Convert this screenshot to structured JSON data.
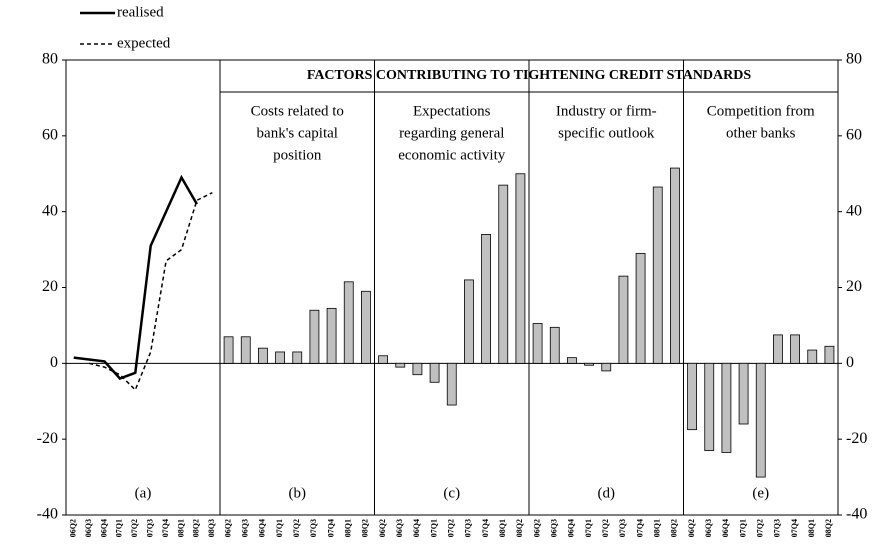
{
  "chart_data": {
    "type": "panels",
    "super_title": "FACTORS CONTRIBUTING TO TIGHTENING CREDIT STANDARDS",
    "ylim": [
      -40,
      80
    ],
    "yticks": [
      -40,
      -20,
      0,
      20,
      40,
      60,
      80
    ],
    "panels": [
      {
        "type": "line",
        "label": "(a)",
        "categories": [
          "06Q2",
          "06Q3",
          "06Q4",
          "07Q1",
          "07Q2",
          "07Q3",
          "07Q4",
          "08Q1",
          "08Q2",
          "08Q3"
        ],
        "series": [
          {
            "name": "realised",
            "color": "#000000",
            "dash": false,
            "values": [
              1.5,
              1,
              0.5,
              -4,
              -2.5,
              31,
              40,
              49,
              42,
              null
            ]
          },
          {
            "name": "expected",
            "color": "#000000",
            "dash": true,
            "values": [
              null,
              0,
              -1,
              -3,
              -7,
              3,
              27,
              30,
              43,
              45
            ]
          }
        ]
      },
      {
        "type": "bar",
        "label": "(b)",
        "title": [
          "Costs related to",
          "bank's capital",
          "position"
        ],
        "color": "#c0c0c0",
        "categories": [
          "06Q2",
          "06Q3",
          "06Q4",
          "07Q1",
          "07Q2",
          "07Q3",
          "07Q4",
          "08Q1",
          "08Q2"
        ],
        "values": [
          7,
          7,
          4,
          3,
          3,
          14,
          14.5,
          21.5,
          19
        ]
      },
      {
        "type": "bar",
        "label": "(c)",
        "title": [
          "Expectations",
          "regarding general",
          "economic activity"
        ],
        "color": "#c0c0c0",
        "categories": [
          "06Q2",
          "06Q3",
          "06Q4",
          "07Q1",
          "07Q2",
          "07Q3",
          "07Q4",
          "08Q1",
          "08Q2"
        ],
        "values": [
          2,
          -1,
          -3,
          -5,
          -11,
          22,
          34,
          47,
          50
        ]
      },
      {
        "type": "bar",
        "label": "(d)",
        "title": [
          "Industry or firm-",
          "specific outlook"
        ],
        "color": "#c0c0c0",
        "categories": [
          "06Q2",
          "06Q3",
          "06Q4",
          "07Q1",
          "07Q2",
          "07Q3",
          "07Q4",
          "08Q1",
          "08Q2"
        ],
        "values": [
          10.5,
          9.5,
          1.5,
          -0.5,
          -2,
          23,
          29,
          46.5,
          51.5
        ]
      },
      {
        "type": "bar",
        "label": "(e)",
        "title": [
          "Competition from",
          "other banks"
        ],
        "color": "#c0c0c0",
        "categories": [
          "06Q2",
          "06Q3",
          "06Q4",
          "07Q1",
          "07Q2",
          "07Q3",
          "07Q4",
          "08Q1",
          "08Q2"
        ],
        "values": [
          -17.5,
          -23,
          -23.5,
          -16,
          -30,
          7.5,
          7.5,
          3.5,
          4.5
        ]
      }
    ]
  }
}
